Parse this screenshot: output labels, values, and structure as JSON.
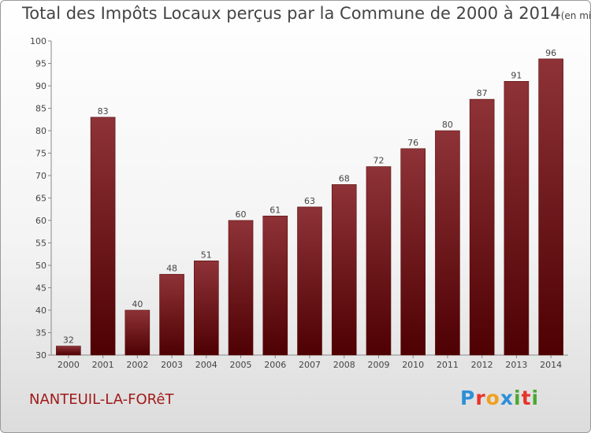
{
  "title": "Total des Impôts Locaux perçus par la Commune de 2000 à 2014",
  "unit": "(en milliers d'€)",
  "commune": "NANTEUIL-LA-FORêT",
  "logo": {
    "text": "Proxiti",
    "letters": [
      {
        "ch": "P",
        "color": "#2d8fd8"
      },
      {
        "ch": "r",
        "color": "#e8332a"
      },
      {
        "ch": "o",
        "color": "#f0a020"
      },
      {
        "ch": "x",
        "color": "#2d8fd8"
      },
      {
        "ch": "i",
        "color": "#4aa832"
      },
      {
        "ch": "t",
        "color": "#e8332a"
      },
      {
        "ch": "i",
        "color": "#4aa832"
      }
    ]
  },
  "chart_data": {
    "type": "bar",
    "title": "Total des Impôts Locaux perçus par la Commune de 2000 à 2014",
    "ylabel": "",
    "xlabel": "",
    "categories": [
      "2000",
      "2001",
      "2002",
      "2003",
      "2004",
      "2005",
      "2006",
      "2007",
      "2008",
      "2009",
      "2010",
      "2011",
      "2012",
      "2013",
      "2014"
    ],
    "values": [
      32,
      83,
      40,
      48,
      51,
      60,
      61,
      63,
      68,
      72,
      76,
      80,
      87,
      91,
      96
    ],
    "ylim": [
      30,
      100
    ],
    "yticks": [
      30,
      35,
      40,
      45,
      50,
      55,
      60,
      65,
      70,
      75,
      80,
      85,
      90,
      95,
      100
    ],
    "bar_color": "#8b1a1a",
    "grid": false,
    "data_labels": true
  }
}
